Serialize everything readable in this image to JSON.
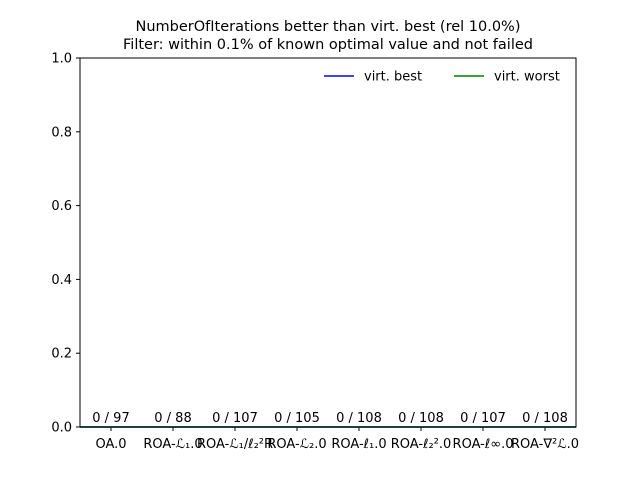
{
  "chart_data": {
    "type": "bar",
    "title": "NumberOfIterations better than virt. best (rel 10.0%)",
    "subtitle": "Filter: within 0.1% of known optimal value and not failed",
    "xlabel": "",
    "ylabel": "",
    "ylim": [
      0,
      1.0
    ],
    "yticks": [
      "0.0",
      "0.2",
      "0.4",
      "0.6",
      "0.8",
      "1.0"
    ],
    "categories": [
      "OA.0",
      "ROA-ℒ₁.0",
      "ROA-ℒ₁/ℓ₂²R",
      "ROA-ℒ₂.0",
      "ROA-ℓ₁.0",
      "ROA-ℓ₂².0",
      "ROA-ℓ∞.0",
      "ROA-∇²ℒ.0"
    ],
    "values": [
      0,
      0,
      0,
      0,
      0,
      0,
      0,
      0
    ],
    "bar_labels": [
      "0 / 97",
      "0 / 88",
      "0 / 107",
      "0 / 105",
      "0 / 108",
      "0 / 108",
      "0 / 107",
      "0 / 108"
    ],
    "series": [
      {
        "name": "virt. best",
        "color": "#0000ff",
        "values": [
          0,
          0,
          0,
          0,
          0,
          0,
          0,
          0
        ]
      },
      {
        "name": "virt. worst",
        "color": "#008000",
        "values": [
          0,
          0,
          0,
          0,
          0,
          0,
          0,
          0
        ]
      }
    ],
    "legend_position": "top-right",
    "grid": false
  }
}
